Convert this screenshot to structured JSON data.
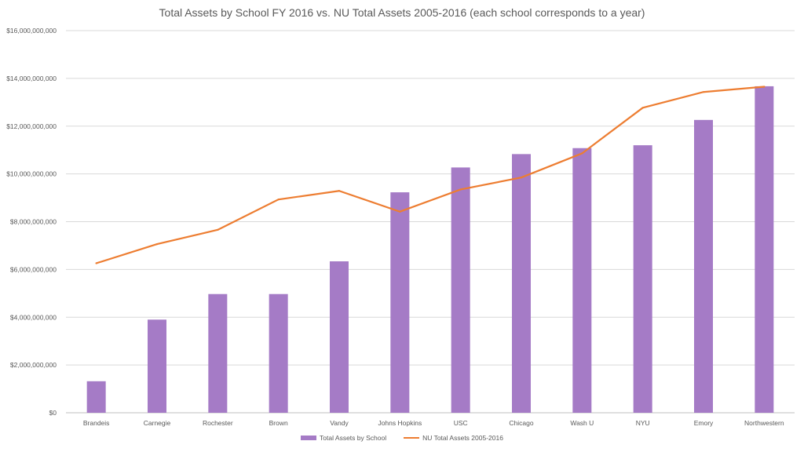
{
  "chart_data": {
    "type": "bar",
    "title": "Total Assets by School FY 2016 vs. NU Total Assets 2005-2016 (each school corresponds to a year)",
    "categories": [
      "Brandeis",
      "Carnegie",
      "Rochester",
      "Brown",
      "Vandy",
      "Johns Hopkins",
      "USC",
      "Chicago",
      "Wash U",
      "NYU",
      "Emory",
      "Northwestern"
    ],
    "series": [
      {
        "name": "Total Assets by School",
        "type": "bar",
        "color": "#a57bc6",
        "values": [
          1320000000,
          3900000000,
          4970000000,
          4970000000,
          6340000000,
          9230000000,
          10270000000,
          10830000000,
          11080000000,
          11200000000,
          12260000000,
          13670000000
        ]
      },
      {
        "name": "NU Total Assets 2005-2016",
        "type": "line",
        "color": "#ed7d31",
        "values": [
          6260000000,
          7060000000,
          7660000000,
          8930000000,
          9290000000,
          8420000000,
          9350000000,
          9850000000,
          10860000000,
          12770000000,
          13430000000,
          13650000000
        ]
      }
    ],
    "ylim": [
      0,
      16000000000
    ],
    "y_ticks": [
      0,
      2000000000,
      4000000000,
      6000000000,
      8000000000,
      10000000000,
      12000000000,
      14000000000,
      16000000000
    ],
    "y_tick_labels": [
      "$0",
      "$2,000,000,000",
      "$4,000,000,000",
      "$6,000,000,000",
      "$8,000,000,000",
      "$10,000,000,000",
      "$12,000,000,000",
      "$14,000,000,000",
      "$16,000,000,000"
    ],
    "grid": true,
    "legend_position": "bottom"
  }
}
